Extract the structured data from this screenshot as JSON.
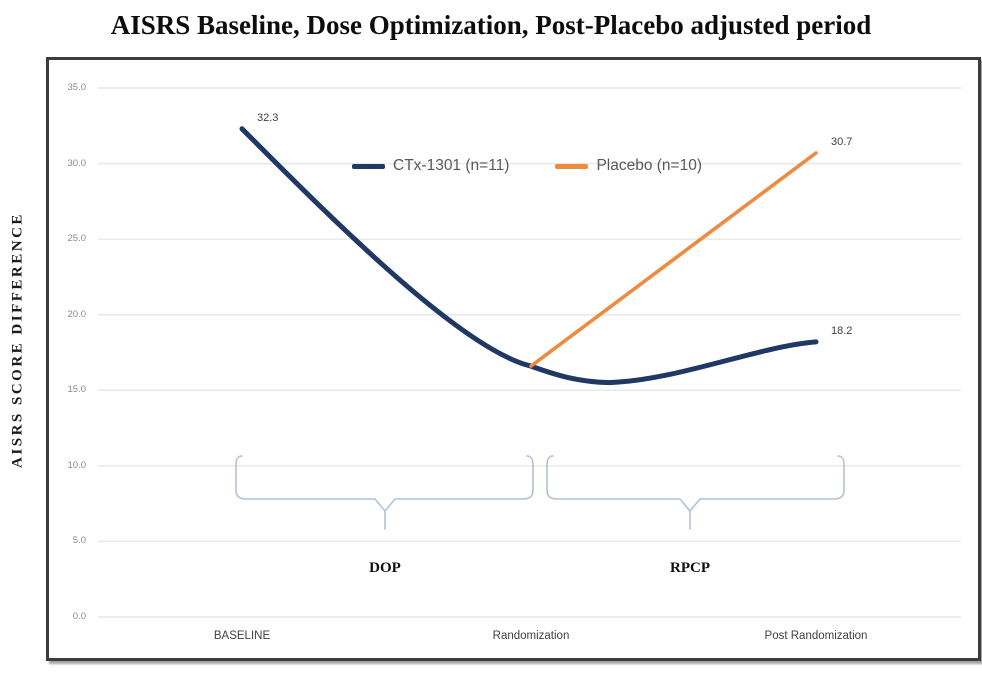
{
  "page_title": "AISRS Baseline, Dose Optimization, Post-Placebo adjusted period",
  "chart_data": {
    "type": "line",
    "title": "AISRS Baseline, Dose Optimization, Post-Placebo adjusted period",
    "ylabel": "AISRS SCORE DIFFERENCE",
    "xlabel": "",
    "ylim": [
      0,
      35
    ],
    "grid": true,
    "legend_position": "top-center-inside",
    "y_tick_values": [
      35,
      30,
      25,
      20,
      15,
      10,
      5,
      0
    ],
    "y_tick_labels": [
      "35.0",
      "30.0",
      "25.0",
      "20.0",
      "15.0",
      "10.0",
      "5.0",
      "0.0"
    ],
    "categories": [
      "BASELINE",
      "Randomization",
      "Post Randomization"
    ],
    "series": [
      {
        "name": "CTx-1301 (n=11)",
        "color": "#1F3864",
        "smooth": true,
        "points": [
          {
            "category": "BASELINE",
            "value": 32.3,
            "label": "32.3"
          },
          {
            "category": "Randomization",
            "value": 16.6,
            "label": ""
          },
          {
            "category": "Post Randomization",
            "value": 18.2,
            "label": "18.2"
          }
        ]
      },
      {
        "name": "Placebo (n=10)",
        "color": "#ED8B3E",
        "smooth": false,
        "points": [
          {
            "category": "Randomization",
            "value": 16.6,
            "label": ""
          },
          {
            "category": "Post Randomization",
            "value": 30.7,
            "label": "30.7"
          }
        ]
      }
    ],
    "annotations": {
      "bracket_color": "#b3c2d6",
      "brackets": [
        {
          "label": "DOP",
          "from": "BASELINE",
          "to": "Randomization"
        },
        {
          "label": "RPCP",
          "from": "Randomization",
          "to": "Post Randomization"
        }
      ]
    },
    "colors": {
      "grid": "#e9e9e9",
      "border": "#3c3c3c",
      "axis_text": "#8a8a8a",
      "label_text": "#3f3f3f",
      "legend_text": "#595959"
    }
  }
}
